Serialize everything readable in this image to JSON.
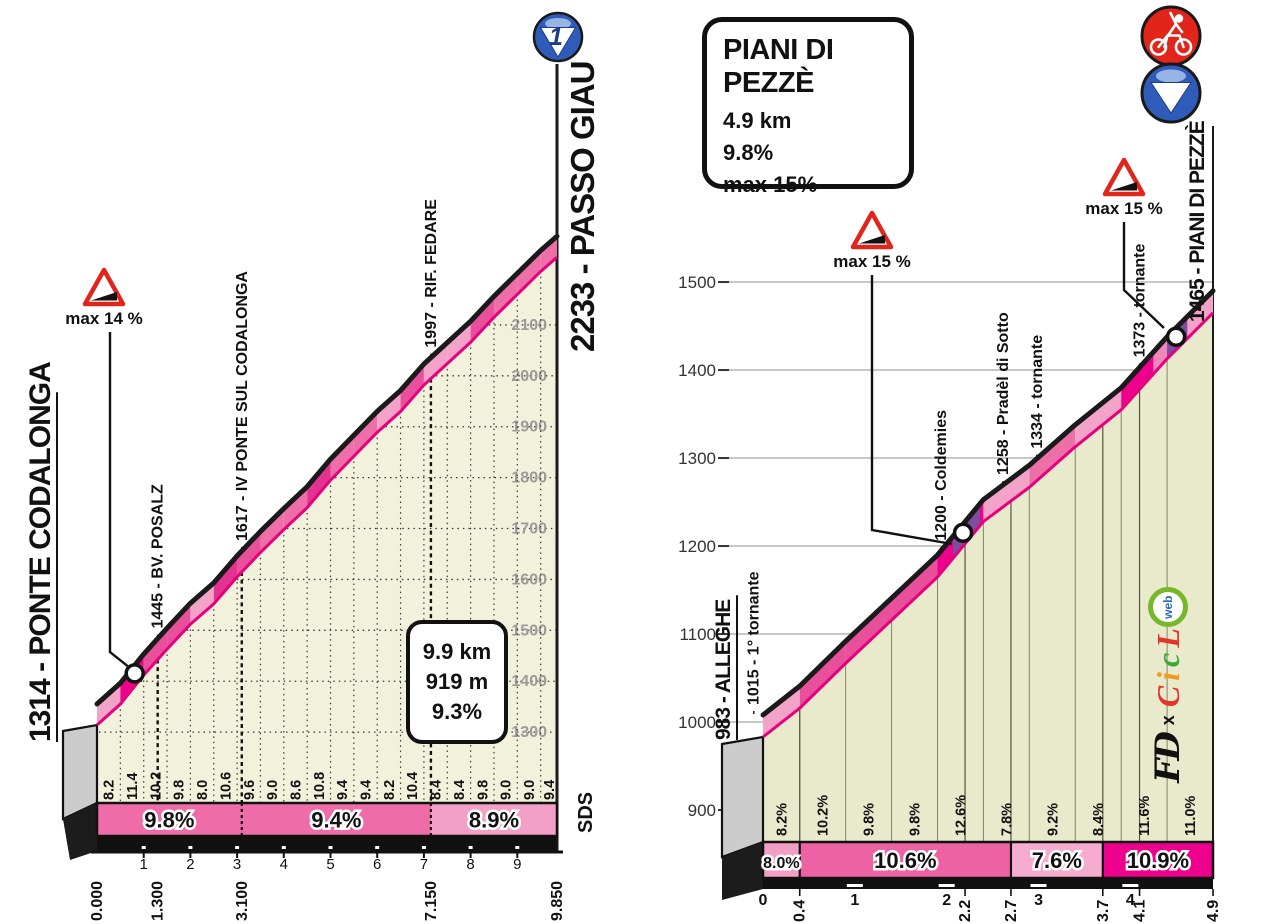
{
  "page": {
    "background": "#ffffff"
  },
  "colors": {
    "band_outline_top": "#1a1a1a",
    "band_outline_bottom": "#e6007e",
    "beige_left": "#f2f1db",
    "beige_right": "#e9e9cc",
    "grid_dot": "#3a3a3a",
    "grid_gray": "#b5b5b5",
    "grid_v_right": "#84846a",
    "alt_label_left": "#9a9a9a",
    "alt_label_right": "#333333",
    "warning_red": "#e1251b",
    "purple_patch": "#7b4fa0",
    "red_patch": "#e1251b",
    "gray_block": "#cccccc",
    "black_block": "#1c1c1c",
    "grad_lt85": "#f4a3c8",
    "grad_lt95": "#ee6fa8",
    "grad_lt105": "#e8509b",
    "grad_lt11": "#e23390",
    "grad_ge11": "#ec008c"
  },
  "chart_data": [
    {
      "type": "area",
      "id": "passo-giau",
      "title_start": "1314 - PONTE CODALONGA",
      "title_end": "2233 - PASSO GIAU",
      "summit_icon": "category-1-descent-icon",
      "summit_icon_number": "1",
      "stats_box": [
        "9.9 km",
        "919 m",
        "9.3%"
      ],
      "start_elevation": 1314,
      "end_elevation": 2233,
      "length_km": 9.85,
      "ylim": [
        1300,
        2233
      ],
      "y_ticks": [
        1300,
        1400,
        1500,
        1600,
        1700,
        1800,
        1900,
        2000,
        2100
      ],
      "column_widths_km": [
        0.5,
        0.5,
        0.5,
        0.5,
        0.5,
        0.5,
        0.5,
        0.5,
        0.5,
        0.5,
        0.5,
        0.5,
        0.5,
        0.5,
        0.5,
        0.5,
        0.5,
        0.5,
        0.5,
        0.35
      ],
      "gradients": [
        8.2,
        11.4,
        10.2,
        9.8,
        8.0,
        10.6,
        9.6,
        9.0,
        8.6,
        10.8,
        9.4,
        9.4,
        8.2,
        10.4,
        8.4,
        8.4,
        9.8,
        9.0,
        9.0,
        9.4
      ],
      "gradient_suffix": "",
      "x_tick_numbers": [
        "1",
        "2",
        "3",
        "4",
        "5",
        "6",
        "7",
        "8",
        "9"
      ],
      "distance_labels": [
        {
          "km": 0,
          "label": "0.000"
        },
        {
          "km": 1.3,
          "label": "1.300"
        },
        {
          "km": 3.1,
          "label": "3.100"
        },
        {
          "km": 7.15,
          "label": "7.150"
        },
        {
          "km": 9.85,
          "label": "9.850"
        }
      ],
      "waypoints": [
        {
          "km": 1.3,
          "elevation": 1445,
          "label": "1445 - BV. POSALZ",
          "dx": 0
        },
        {
          "km": 3.1,
          "elevation": 1617,
          "label": "1617 - IV PONTE SUL CODALONGA",
          "dx": 0
        },
        {
          "km": 7.15,
          "elevation": 1997,
          "label": "1997 - RIF. FEDARE",
          "dx": 0
        }
      ],
      "segments": [
        {
          "from": 0,
          "to": 3.1,
          "label": "9.8%",
          "color": "#ee6ca8"
        },
        {
          "from": 3.1,
          "to": 7.15,
          "label": "9.4%",
          "color": "#ee6ca8"
        },
        {
          "from": 7.15,
          "to": 9.85,
          "label": "8.9%",
          "color": "#f2a0c6"
        }
      ],
      "patches": [
        {
          "from": 0.76,
          "to": 0.94,
          "color": "#e1251b",
          "part": "lower"
        }
      ],
      "markers": [
        {
          "km": 0.85
        }
      ],
      "max_gradient_labels": [
        {
          "label": "max 14 %"
        }
      ],
      "side_label": "SDS",
      "grid_style": "dotted"
    },
    {
      "type": "area",
      "id": "piani-di-pezze",
      "title_start": "983 - ALLEGHE",
      "title_end": "1465 - PIANI DI PEZZÈ",
      "icons": [
        "kom-cyclist-icon",
        "descent-icon"
      ],
      "info_box": {
        "title": "PIANI DI PEZZÈ",
        "lines": [
          "4.9 km",
          "9.8%",
          "max 15%"
        ]
      },
      "start_elevation": 983,
      "end_elevation": 1465,
      "length_km": 4.9,
      "ylim": [
        900,
        1500
      ],
      "y_ticks": [
        900,
        1000,
        1100,
        1200,
        1300,
        1400,
        1500
      ],
      "column_widths_km": [
        0.4,
        0.5,
        0.5,
        0.5,
        0.5,
        0.5,
        0.5,
        0.5,
        0.5,
        0.5
      ],
      "gradients": [
        8.2,
        10.2,
        9.8,
        9.8,
        12.6,
        7.8,
        9.2,
        8.4,
        11.6,
        11.0
      ],
      "gradient_suffix": "%",
      "x_tick_numbers": [
        "0",
        "1",
        "2",
        "3",
        "4"
      ],
      "distance_labels": [
        {
          "km": 0.4,
          "label": "0.4"
        },
        {
          "km": 2.2,
          "label": "2.2"
        },
        {
          "km": 2.7,
          "label": "2.7"
        },
        {
          "km": 3.7,
          "label": "3.7"
        },
        {
          "km": 4.1,
          "label": "4.1"
        },
        {
          "km": 4.9,
          "label": "4.9"
        }
      ],
      "waypoints": [
        {
          "km": 0.4,
          "elevation": 1015,
          "label": "1015 - 1° tornante",
          "dx": -46
        },
        {
          "km": 2.2,
          "elevation": 1200,
          "label": "1200 - Coldemies",
          "dx": -24
        },
        {
          "km": 2.7,
          "elevation": 1258,
          "label": "1258 - Pradèl di Sotto",
          "dx": -8
        },
        {
          "km": 3.7,
          "elevation": 1334,
          "label": "1334 - tornante",
          "dx": -66
        },
        {
          "km": 4.1,
          "elevation": 1373,
          "label": "1373 - tornante",
          "dx": 0
        }
      ],
      "segments": [
        {
          "from": 0,
          "to": 0.4,
          "label": "8.0%",
          "color": "#f29fc5"
        },
        {
          "from": 0.4,
          "to": 2.7,
          "label": "10.6%",
          "color": "#ed62a3"
        },
        {
          "from": 2.7,
          "to": 3.7,
          "label": "7.6%",
          "color": "#f5accf"
        },
        {
          "from": 3.7,
          "to": 4.9,
          "label": "10.9%",
          "color": "#ec008c"
        }
      ],
      "patches": [
        {
          "from": 2.07,
          "to": 2.36,
          "color": "#7b4fa0",
          "part": "full"
        },
        {
          "from": 4.25,
          "to": 4.4,
          "color": "#ef87ba",
          "part": "full"
        },
        {
          "from": 4.4,
          "to": 4.62,
          "color": "#7b4fa0",
          "part": "full"
        },
        {
          "from": 4.62,
          "to": 4.9,
          "color": "#f4a3c8",
          "part": "full"
        }
      ],
      "markers": [
        {
          "km": 2.2
        },
        {
          "km": 4.52
        }
      ],
      "max_gradient_labels": [
        {
          "label": "max 15 %"
        },
        {
          "label": "max 15 %"
        }
      ],
      "side_label": "",
      "grid_style": "solid",
      "brand": {
        "fd": "FD",
        "times": "x",
        "letters": [
          {
            "ch": "C",
            "color": "#e63329"
          },
          {
            "ch": "i",
            "color": "#f59a1e"
          },
          {
            "ch": "c",
            "color": "#3aaa35"
          },
          {
            "ch": "L",
            "color": "#e63329"
          }
        ],
        "web": "web",
        "web_color": "#2b6cb8",
        "ring_color": "#76b82a"
      }
    }
  ]
}
